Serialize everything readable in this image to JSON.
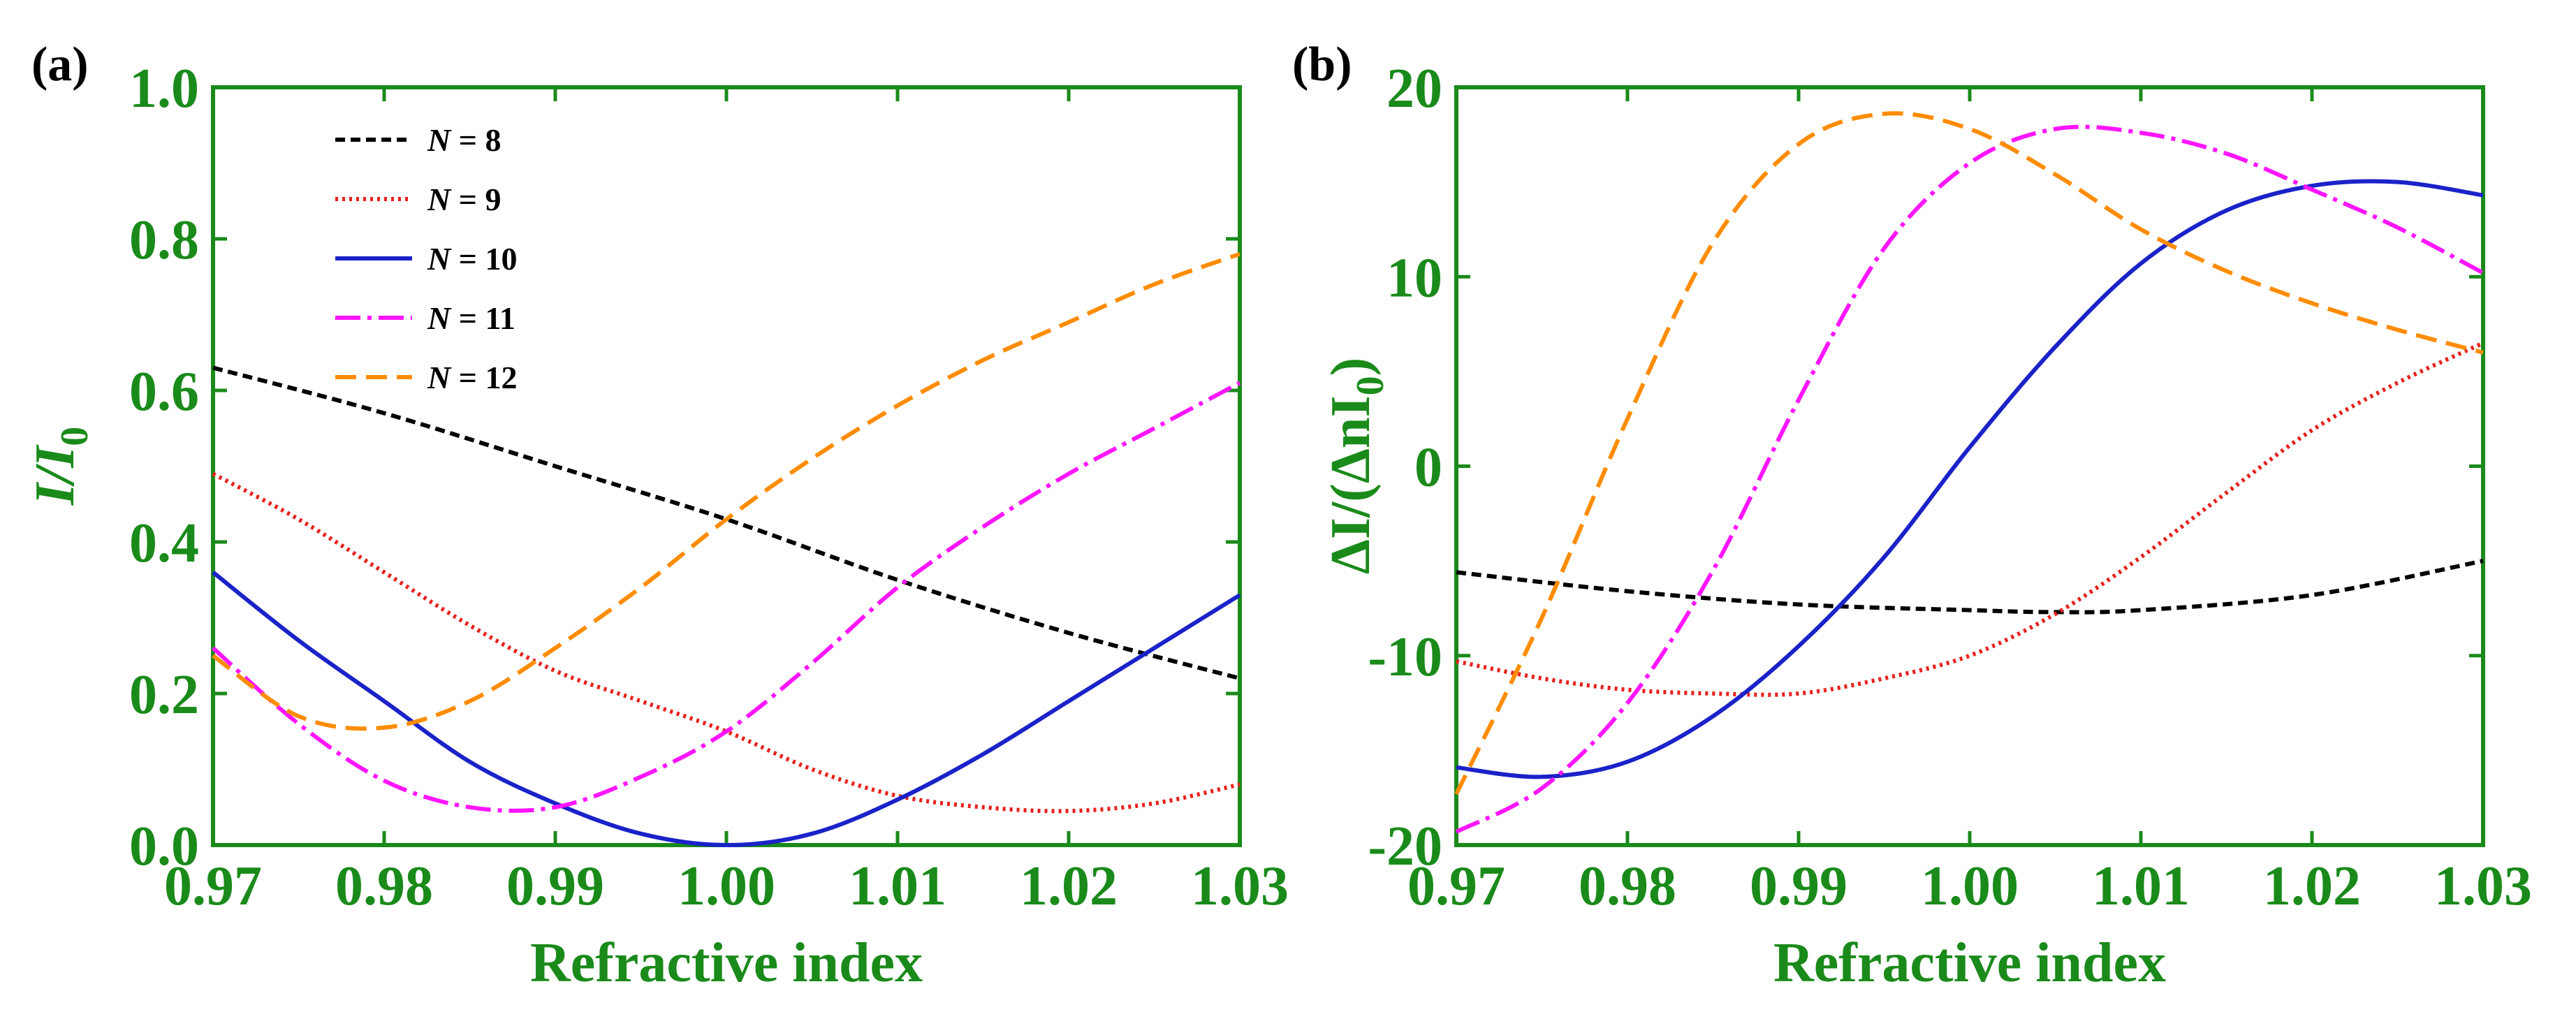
{
  "colors": {
    "axis": "#1a8a1a",
    "n8": "#000000",
    "n9": "#e8201c",
    "n10": "#1a22c8",
    "n11": "#ff16ff",
    "n12": "#ff8c00"
  },
  "chart_data": [
    {
      "type": "line",
      "panel_label": "(a)",
      "xlabel": "Refractive index",
      "ylabel_main": "I/I",
      "ylabel_sub": "0",
      "xlim": [
        0.97,
        1.03
      ],
      "ylim": [
        0.0,
        1.0
      ],
      "xticks": [
        "0.97",
        "0.98",
        "0.99",
        "1.00",
        "1.01",
        "1.02",
        "1.03"
      ],
      "yticks": [
        "0.0",
        "0.2",
        "0.4",
        "0.6",
        "0.8",
        "1.0"
      ],
      "legend_position": "top-left",
      "series": [
        {
          "name": "N = 8",
          "n_label": "N",
          "n_value": "= 8",
          "color_key": "n8",
          "dash": "14 8",
          "x": [
            0.97,
            0.98,
            0.99,
            1.0,
            1.01,
            1.02,
            1.03
          ],
          "y": [
            0.63,
            0.57,
            0.5,
            0.43,
            0.35,
            0.28,
            0.22
          ]
        },
        {
          "name": "N = 9",
          "n_label": "N",
          "n_value": "= 9",
          "color_key": "n9",
          "dash": "4 6",
          "x": [
            0.97,
            0.975,
            0.98,
            0.985,
            0.99,
            0.995,
            1.0,
            1.005,
            1.01,
            1.015,
            1.02,
            1.025,
            1.03
          ],
          "y": [
            0.49,
            0.43,
            0.36,
            0.29,
            0.23,
            0.19,
            0.15,
            0.1,
            0.065,
            0.05,
            0.045,
            0.055,
            0.08
          ]
        },
        {
          "name": "N = 10",
          "n_label": "N",
          "n_value": "= 10",
          "color_key": "n10",
          "dash": "",
          "x": [
            0.97,
            0.975,
            0.98,
            0.985,
            0.99,
            0.995,
            1.0,
            1.005,
            1.01,
            1.015,
            1.02,
            1.025,
            1.03
          ],
          "y": [
            0.36,
            0.27,
            0.19,
            0.11,
            0.055,
            0.015,
            0.0,
            0.015,
            0.06,
            0.12,
            0.19,
            0.26,
            0.33
          ]
        },
        {
          "name": "N = 11",
          "n_label": "N",
          "n_value": "= 11",
          "color_key": "n11",
          "dash": "36 10 6 10",
          "x": [
            0.97,
            0.975,
            0.98,
            0.985,
            0.99,
            0.995,
            1.0,
            1.005,
            1.01,
            1.015,
            1.02,
            1.025,
            1.03
          ],
          "y": [
            0.26,
            0.16,
            0.085,
            0.05,
            0.05,
            0.09,
            0.15,
            0.24,
            0.34,
            0.42,
            0.49,
            0.55,
            0.61
          ]
        },
        {
          "name": "N = 12",
          "n_label": "N",
          "n_value": "= 12",
          "color_key": "n12",
          "dash": "30 14",
          "x": [
            0.97,
            0.975,
            0.98,
            0.985,
            0.99,
            0.995,
            1.0,
            1.005,
            1.01,
            1.015,
            1.02,
            1.025,
            1.03
          ],
          "y": [
            0.25,
            0.17,
            0.155,
            0.19,
            0.26,
            0.34,
            0.43,
            0.51,
            0.58,
            0.64,
            0.69,
            0.74,
            0.78
          ]
        }
      ]
    },
    {
      "type": "line",
      "panel_label": "(b)",
      "xlabel": "Refractive index",
      "ylabel_main": "ΔI/(ΔnI",
      "ylabel_sub": "0",
      "ylabel_close": ")",
      "xlim": [
        0.97,
        1.03
      ],
      "ylim": [
        -20,
        20
      ],
      "xticks": [
        "0.97",
        "0.98",
        "0.99",
        "1.00",
        "1.01",
        "1.02",
        "1.03"
      ],
      "yticks": [
        "-20",
        "-10",
        "0",
        "10",
        "20"
      ],
      "series": [
        {
          "name": "N = 8",
          "color_key": "n8",
          "dash": "14 8",
          "x": [
            0.97,
            0.98,
            0.99,
            1.0,
            1.005,
            1.01,
            1.02,
            1.03
          ],
          "y": [
            -5.6,
            -6.6,
            -7.3,
            -7.6,
            -7.7,
            -7.6,
            -6.8,
            -5.0
          ]
        },
        {
          "name": "N = 9",
          "color_key": "n9",
          "dash": "4 6",
          "x": [
            0.97,
            0.975,
            0.98,
            0.985,
            0.99,
            0.995,
            1.0,
            1.005,
            1.01,
            1.015,
            1.02,
            1.025,
            1.03
          ],
          "y": [
            -10.3,
            -11.2,
            -11.8,
            -12.0,
            -12.0,
            -11.2,
            -10.0,
            -7.8,
            -4.8,
            -1.4,
            1.9,
            4.4,
            6.5
          ]
        },
        {
          "name": "N = 10",
          "color_key": "n10",
          "dash": "",
          "x": [
            0.97,
            0.975,
            0.98,
            0.985,
            0.99,
            0.995,
            1.0,
            1.005,
            1.01,
            1.015,
            1.02,
            1.025,
            1.03
          ],
          "y": [
            -15.9,
            -16.4,
            -15.6,
            -13.2,
            -9.5,
            -4.8,
            1.0,
            6.3,
            10.7,
            13.5,
            14.8,
            15.0,
            14.3
          ]
        },
        {
          "name": "N = 11",
          "color_key": "n11",
          "dash": "36 10 6 10",
          "x": [
            0.97,
            0.975,
            0.98,
            0.985,
            0.99,
            0.995,
            1.0,
            1.005,
            1.01,
            1.015,
            1.02,
            1.025,
            1.03
          ],
          "y": [
            -19.3,
            -17.0,
            -12.5,
            -5.5,
            3.5,
            11.5,
            16.0,
            17.8,
            17.6,
            16.5,
            14.6,
            12.6,
            10.2
          ]
        },
        {
          "name": "N = 12",
          "color_key": "n12",
          "dash": "30 14",
          "x": [
            0.97,
            0.975,
            0.98,
            0.985,
            0.99,
            0.995,
            1.0,
            1.005,
            1.01,
            1.015,
            1.02,
            1.025,
            1.03
          ],
          "y": [
            -17.3,
            -8.0,
            2.5,
            11.8,
            17.0,
            18.6,
            17.8,
            15.4,
            12.5,
            10.3,
            8.6,
            7.2,
            6.0
          ]
        }
      ]
    }
  ]
}
